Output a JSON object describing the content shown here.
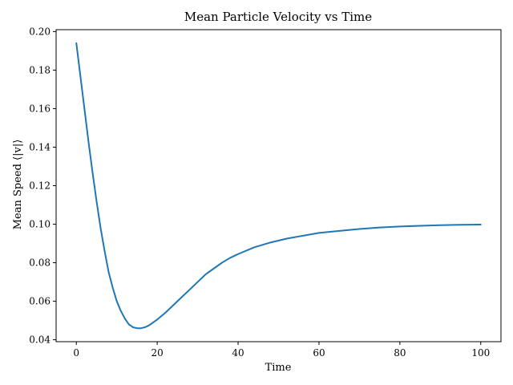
{
  "chart_data": {
    "type": "line",
    "title": "Mean Particle Velocity vs Time",
    "xlabel": "Time",
    "ylabel": "Mean Speed ⟨|v|⟩",
    "xlim": [
      -5,
      105
    ],
    "ylim": [
      0.039,
      0.201
    ],
    "xticks": [
      0,
      20,
      40,
      60,
      80,
      100
    ],
    "xtick_labels": [
      "0",
      "20",
      "40",
      "60",
      "80",
      "100"
    ],
    "yticks": [
      0.04,
      0.06,
      0.08,
      0.1,
      0.12,
      0.14,
      0.16,
      0.18,
      0.2
    ],
    "ytick_labels": [
      "0.04",
      "0.06",
      "0.08",
      "0.10",
      "0.12",
      "0.14",
      "0.16",
      "0.18",
      "0.20"
    ],
    "grid": false,
    "series": [
      {
        "color": "#1f77b4",
        "x": [
          0,
          1,
          2,
          3,
          4,
          5,
          6,
          7,
          8,
          9,
          10,
          11,
          12,
          13,
          14,
          15,
          16,
          17,
          18,
          19,
          20,
          22,
          24,
          26,
          28,
          30,
          32,
          34,
          36,
          38,
          40,
          44,
          48,
          52,
          56,
          60,
          65,
          70,
          75,
          80,
          85,
          90,
          95,
          100
        ],
        "y": [
          0.194,
          0.177,
          0.16,
          0.143,
          0.127,
          0.112,
          0.098,
          0.086,
          0.075,
          0.067,
          0.06,
          0.055,
          0.051,
          0.048,
          0.0465,
          0.046,
          0.046,
          0.0465,
          0.0475,
          0.049,
          0.0505,
          0.054,
          0.058,
          0.062,
          0.066,
          0.07,
          0.074,
          0.077,
          0.08,
          0.0825,
          0.0845,
          0.088,
          0.0905,
          0.0925,
          0.094,
          0.0955,
          0.0965,
          0.0975,
          0.0983,
          0.0988,
          0.0992,
          0.0995,
          0.0997,
          0.0998
        ]
      }
    ]
  }
}
